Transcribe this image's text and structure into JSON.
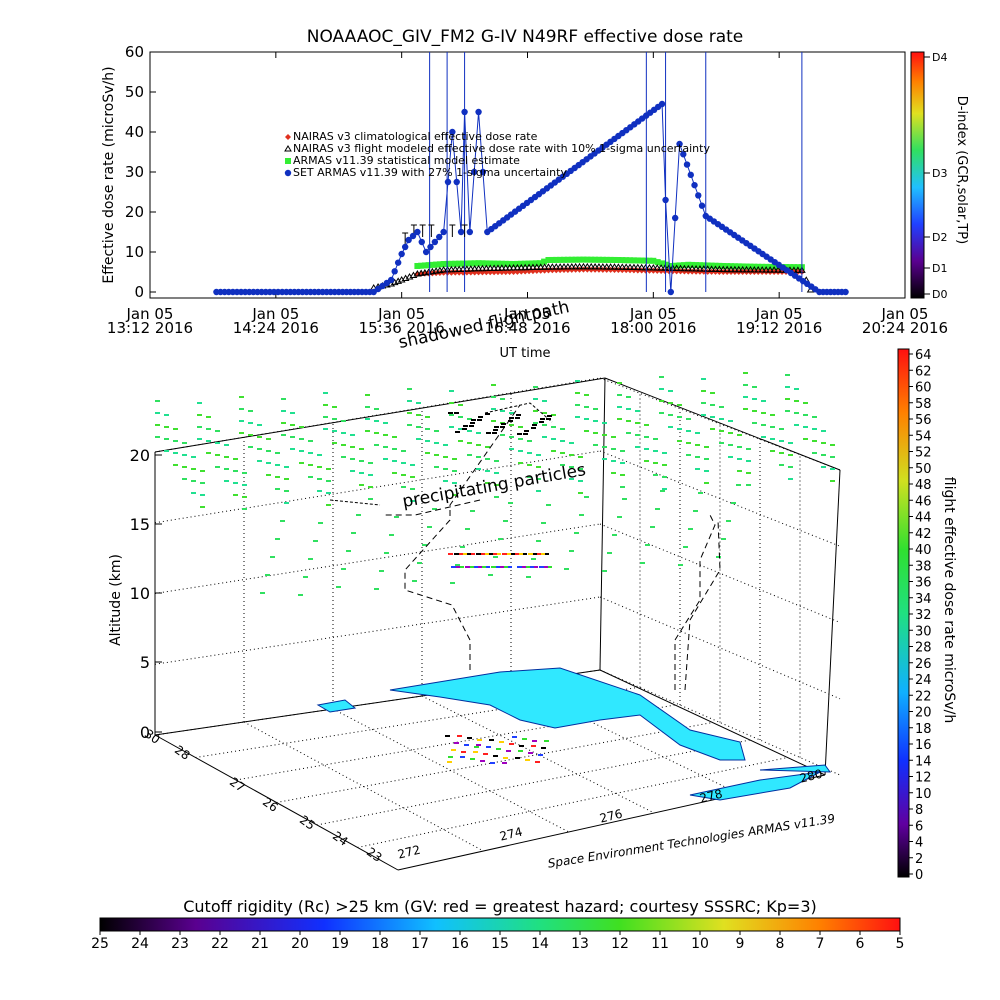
{
  "title": "NOAAAOC_GIV_FM2 G-IV   N49RF  effective dose rate",
  "top_chart": {
    "ylabel": "Effective dose rate (microSv/h)",
    "xlabel": "UT time",
    "yticks": [
      "0",
      "10",
      "20",
      "30",
      "40",
      "50",
      "60"
    ],
    "xticks": [
      {
        "l1": "Jan 05",
        "l2": "13:12 2016"
      },
      {
        "l1": "Jan 05",
        "l2": "14:24 2016"
      },
      {
        "l1": "Jan 05",
        "l2": "15:36 2016"
      },
      {
        "l1": "Jan 05",
        "l2": "16:48 2016"
      },
      {
        "l1": "Jan 05",
        "l2": "18:00 2016"
      },
      {
        "l1": "Jan 05",
        "l2": "19:12 2016"
      },
      {
        "l1": "Jan 05",
        "l2": "20:24 2016"
      }
    ],
    "legend": [
      {
        "label": "NAIRAS v3 climatological effective dose rate",
        "color": "#e0301e",
        "marker": "diamond"
      },
      {
        "label": "NAIRAS v3 flight modeled effective dose rate with 10% 1-sigma uncertainty",
        "color": "#000000",
        "marker": "triangle"
      },
      {
        "label": "ARMAS v11.39 statistical model estimate",
        "color": "#33ee33",
        "marker": "star"
      },
      {
        "label": "SET ARMAS v11.39 with 27% 1-sigma uncertainty",
        "color": "#1030c0",
        "marker": "circle"
      }
    ],
    "dindex_label": "D-index (GCR,solar,TP)",
    "dindex_ticks": [
      "D4",
      "D3",
      "D2",
      "D1",
      "D0"
    ],
    "overlay_text": "shadowed flightpath"
  },
  "bottom_chart": {
    "zlabel": "Altitude (km)",
    "zticks": [
      "0",
      "5",
      "10",
      "15",
      "20"
    ],
    "lat_ticks": [
      "23",
      "24",
      "25",
      "26",
      "27",
      "28",
      "30"
    ],
    "lon_ticks": [
      "272",
      "274",
      "276",
      "278",
      "280"
    ],
    "annotation": "precipitating particles",
    "credit": "Space Environment Technologies ARMAS v11.39",
    "colorbar_label": "flight effective dose rate microSv/h",
    "colorbar_ticks": [
      "64",
      "62",
      "60",
      "58",
      "56",
      "54",
      "52",
      "50",
      "48",
      "46",
      "44",
      "42",
      "40",
      "38",
      "36",
      "34",
      "32",
      "30",
      "28",
      "26",
      "24",
      "22",
      "20",
      "18",
      "16",
      "14",
      "12",
      "10",
      "8",
      "6",
      "4",
      "2",
      "0"
    ]
  },
  "bottom_bar": {
    "label": "Cutoff rigidity (Rc) >25 km (GV: red = greatest hazard; courtesy SSSRC; Kp=3)",
    "ticks": [
      "25",
      "24",
      "23",
      "22",
      "21",
      "20",
      "19",
      "18",
      "17",
      "16",
      "15",
      "14",
      "13",
      "12",
      "11",
      "10",
      "9",
      "8",
      "7",
      "6",
      "5"
    ]
  },
  "chart_data": {
    "type": "scatter",
    "title": "NOAAAOC_GIV_FM2 G-IV   N49RF  effective dose rate",
    "xlabel": "UT time",
    "ylabel": "Effective dose rate (microSv/h)",
    "ylim": [
      0,
      60
    ],
    "xlim": [
      "13:12",
      "20:24"
    ],
    "legend_position": "top-left",
    "series": [
      {
        "name": "NAIRAS v3 climatological effective dose rate",
        "x": [
          "15:45",
          "16:00",
          "16:20",
          "16:40",
          "17:00",
          "17:20",
          "17:40",
          "18:00",
          "18:20",
          "18:40",
          "19:00",
          "19:25"
        ],
        "y": [
          4.5,
          4.8,
          4.9,
          5.0,
          5.4,
          5.6,
          5.5,
          5.3,
          5.1,
          5.0,
          5.0,
          5.0
        ]
      },
      {
        "name": "NAIRAS v3 flight modeled effective dose rate with 10% 1-sigma uncertainty",
        "x": [
          "15:20",
          "15:30",
          "15:36",
          "15:45",
          "16:00",
          "16:20",
          "16:40",
          "17:00",
          "17:20",
          "17:40",
          "18:00",
          "18:20",
          "18:40",
          "19:00",
          "19:25",
          "19:30"
        ],
        "y": [
          1,
          2,
          3,
          4.5,
          5.5,
          5.8,
          6.0,
          6.2,
          6.3,
          6.2,
          6.0,
          5.8,
          5.6,
          5.5,
          5.4,
          0.5
        ]
      },
      {
        "name": "ARMAS v11.39 statistical model estimate",
        "x": [
          "15:45",
          "16:00",
          "16:20",
          "16:40",
          "16:55",
          "17:00",
          "17:20",
          "17:40",
          "18:00",
          "18:10",
          "18:20",
          "18:40",
          "19:00",
          "19:25"
        ],
        "y": [
          6.5,
          7.0,
          7.2,
          7.0,
          7.2,
          8.0,
          8.1,
          8.0,
          7.8,
          6.5,
          6.8,
          6.5,
          6.3,
          6.2
        ]
      },
      {
        "name": "SET ARMAS v11.39 with 27% 1-sigma uncertainty",
        "x": [
          "13:50",
          "14:30",
          "15:00",
          "15:20",
          "15:30",
          "15:36",
          "15:40",
          "15:45",
          "15:50",
          "16:00",
          "16:05",
          "16:10",
          "16:12",
          "16:15",
          "16:20",
          "16:25",
          "18:05",
          "18:07",
          "18:10",
          "18:15",
          "18:30",
          "19:35",
          "19:50"
        ],
        "y": [
          0,
          0,
          0,
          0,
          3,
          9.5,
          13,
          15,
          10,
          15,
          40,
          15,
          45,
          15,
          45,
          15,
          47,
          23,
          0,
          37,
          19,
          0,
          0
        ]
      }
    ],
    "secondary_axis": {
      "label": "D-index (GCR,solar,TP)",
      "ticks": [
        "D0",
        "D1",
        "D2",
        "D3",
        "D4"
      ]
    }
  }
}
